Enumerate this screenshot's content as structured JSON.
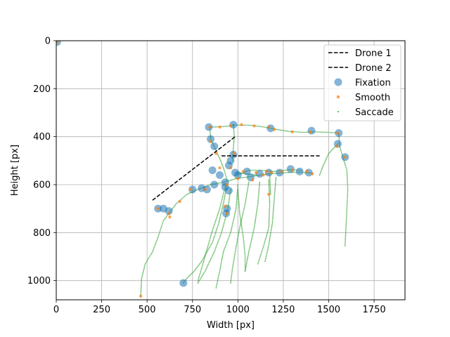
{
  "chart_data": {
    "type": "scatter",
    "xlabel": "Width [px]",
    "ylabel": "Height [px]",
    "xlim": [
      0,
      1920
    ],
    "ylim": [
      1080,
      0
    ],
    "y_inverted": true,
    "grid": true,
    "legend_position": "top-right",
    "x_ticks": [
      0,
      250,
      500,
      750,
      1000,
      1250,
      1500,
      1750
    ],
    "y_ticks": [
      0,
      200,
      400,
      600,
      800,
      1000
    ],
    "colors": {
      "fixation": "#1f77b4",
      "smooth": "#ff7f0e",
      "saccade": "#2ca02c",
      "drone": "#000000",
      "grid": "#b0b0b0"
    },
    "legend": [
      "Drone 1",
      "Drone 2",
      "Fixation",
      "Smooth",
      "Saccade"
    ],
    "series": [
      {
        "name": "Drone 1",
        "kind": "dashed-line",
        "points": [
          [
            530,
            665
          ],
          [
            985,
            400
          ]
        ]
      },
      {
        "name": "Drone 2",
        "kind": "dashed-line",
        "points": [
          [
            910,
            480
          ],
          [
            1450,
            480
          ]
        ]
      },
      {
        "name": "Fixation",
        "kind": "scatter",
        "points": [
          [
            5,
            5
          ],
          [
            700,
            1010
          ],
          [
            840,
            360
          ],
          [
            975,
            350
          ],
          [
            1180,
            365
          ],
          [
            1405,
            375
          ],
          [
            1555,
            385
          ],
          [
            1550,
            430
          ],
          [
            1590,
            485
          ],
          [
            850,
            410
          ],
          [
            870,
            440
          ],
          [
            975,
            475
          ],
          [
            960,
            500
          ],
          [
            950,
            520
          ],
          [
            860,
            540
          ],
          [
            900,
            560
          ],
          [
            930,
            590
          ],
          [
            985,
            550
          ],
          [
            1050,
            545
          ],
          [
            1120,
            555
          ],
          [
            1170,
            550
          ],
          [
            1230,
            550
          ],
          [
            1290,
            535
          ],
          [
            1340,
            545
          ],
          [
            1390,
            550
          ],
          [
            560,
            700
          ],
          [
            590,
            700
          ],
          [
            620,
            710
          ],
          [
            750,
            620
          ],
          [
            800,
            615
          ],
          [
            830,
            620
          ],
          [
            870,
            600
          ],
          [
            930,
            610
          ],
          [
            950,
            625
          ],
          [
            940,
            700
          ],
          [
            935,
            720
          ],
          [
            1000,
            560
          ],
          [
            1070,
            570
          ]
        ]
      },
      {
        "name": "Smooth",
        "kind": "scatter",
        "points": [
          [
            5,
            5
          ],
          [
            465,
            1065
          ],
          [
            560,
            700
          ],
          [
            620,
            720
          ],
          [
            625,
            735
          ],
          [
            680,
            670
          ],
          [
            740,
            620
          ],
          [
            820,
            620
          ],
          [
            845,
            360
          ],
          [
            900,
            360
          ],
          [
            960,
            355
          ],
          [
            1020,
            350
          ],
          [
            1090,
            355
          ],
          [
            1170,
            360
          ],
          [
            1200,
            370
          ],
          [
            1300,
            380
          ],
          [
            1400,
            380
          ],
          [
            1550,
            385
          ],
          [
            1545,
            440
          ],
          [
            1590,
            485
          ],
          [
            850,
            420
          ],
          [
            880,
            470
          ],
          [
            980,
            470
          ],
          [
            900,
            530
          ],
          [
            960,
            530
          ],
          [
            1030,
            545
          ],
          [
            1100,
            550
          ],
          [
            1160,
            545
          ],
          [
            1240,
            545
          ],
          [
            1300,
            540
          ],
          [
            1380,
            545
          ],
          [
            1410,
            555
          ],
          [
            940,
            600
          ],
          [
            1000,
            575
          ],
          [
            1080,
            580
          ],
          [
            930,
            690
          ],
          [
            940,
            720
          ],
          [
            1170,
            640
          ],
          [
            1185,
            550
          ],
          [
            1140,
            560
          ]
        ]
      },
      {
        "name": "Saccade",
        "kind": "trace",
        "paths": [
          [
            [
              465,
              1065
            ],
            [
              470,
              990
            ],
            [
              490,
              930
            ],
            [
              530,
              880
            ],
            [
              560,
              820
            ],
            [
              590,
              750
            ],
            [
              620,
              720
            ]
          ],
          [
            [
              620,
              720
            ],
            [
              660,
              680
            ],
            [
              720,
              640
            ],
            [
              780,
              620
            ],
            [
              850,
              600
            ],
            [
              920,
              590
            ],
            [
              990,
              575
            ],
            [
              1080,
              565
            ],
            [
              1170,
              555
            ],
            [
              1260,
              550
            ],
            [
              1340,
              548
            ],
            [
              1410,
              552
            ]
          ],
          [
            [
              845,
              360
            ],
            [
              920,
              358
            ],
            [
              980,
              352
            ],
            [
              1060,
              352
            ],
            [
              1130,
              358
            ],
            [
              1200,
              368
            ],
            [
              1280,
              378
            ],
            [
              1360,
              382
            ],
            [
              1420,
              380
            ],
            [
              1500,
              382
            ],
            [
              1555,
              385
            ]
          ],
          [
            [
              1555,
              385
            ],
            [
              1560,
              440
            ],
            [
              1580,
              490
            ],
            [
              1600,
              540
            ],
            [
              1605,
              620
            ],
            [
              1600,
              700
            ],
            [
              1595,
              780
            ],
            [
              1590,
              855
            ]
          ],
          [
            [
              1550,
              430
            ],
            [
              1500,
              470
            ],
            [
              1470,
              520
            ],
            [
              1450,
              560
            ]
          ],
          [
            [
              845,
              360
            ],
            [
              850,
              410
            ],
            [
              875,
              450
            ],
            [
              905,
              500
            ],
            [
              925,
              540
            ],
            [
              940,
              580
            ]
          ],
          [
            [
              975,
              350
            ],
            [
              980,
              400
            ],
            [
              975,
              450
            ],
            [
              970,
              500
            ]
          ],
          [
            [
              1000,
              560
            ],
            [
              1060,
              540
            ],
            [
              1130,
              540
            ],
            [
              1200,
              545
            ],
            [
              1280,
              538
            ],
            [
              1350,
              540
            ]
          ],
          [
            [
              940,
              600
            ],
            [
              920,
              680
            ],
            [
              895,
              760
            ],
            [
              860,
              840
            ],
            [
              800,
              920
            ],
            [
              760,
              960
            ],
            [
              720,
              990
            ],
            [
              700,
              1010
            ]
          ],
          [
            [
              960,
              620
            ],
            [
              945,
              700
            ],
            [
              910,
              800
            ],
            [
              870,
              880
            ],
            [
              820,
              960
            ],
            [
              780,
              1010
            ]
          ],
          [
            [
              1000,
              600
            ],
            [
              990,
              700
            ],
            [
              960,
              800
            ],
            [
              920,
              880
            ],
            [
              900,
              960
            ],
            [
              880,
              1030
            ]
          ],
          [
            [
              1060,
              590
            ],
            [
              1040,
              680
            ],
            [
              1010,
              780
            ],
            [
              990,
              860
            ],
            [
              970,
              950
            ],
            [
              960,
              1010
            ]
          ],
          [
            [
              1120,
              590
            ],
            [
              1110,
              680
            ],
            [
              1090,
              780
            ],
            [
              1060,
              880
            ],
            [
              1040,
              960
            ]
          ],
          [
            [
              1170,
              580
            ],
            [
              1175,
              680
            ],
            [
              1170,
              780
            ],
            [
              1140,
              860
            ],
            [
              1110,
              930
            ]
          ],
          [
            [
              1210,
              570
            ],
            [
              1200,
              660
            ],
            [
              1190,
              760
            ],
            [
              1170,
              850
            ],
            [
              1150,
              920
            ]
          ],
          [
            [
              1000,
              620
            ],
            [
              1010,
              720
            ],
            [
              1030,
              820
            ],
            [
              1040,
              900
            ],
            [
              1040,
              960
            ]
          ],
          [
            [
              930,
              610
            ],
            [
              900,
              700
            ],
            [
              860,
              790
            ],
            [
              830,
              870
            ],
            [
              800,
              950
            ],
            [
              780,
              1000
            ]
          ],
          [
            [
              1175,
              555
            ],
            [
              1180,
              640
            ]
          ],
          [
            [
              990,
              550
            ],
            [
              1050,
              555
            ],
            [
              1100,
              560
            ]
          ]
        ]
      }
    ]
  }
}
